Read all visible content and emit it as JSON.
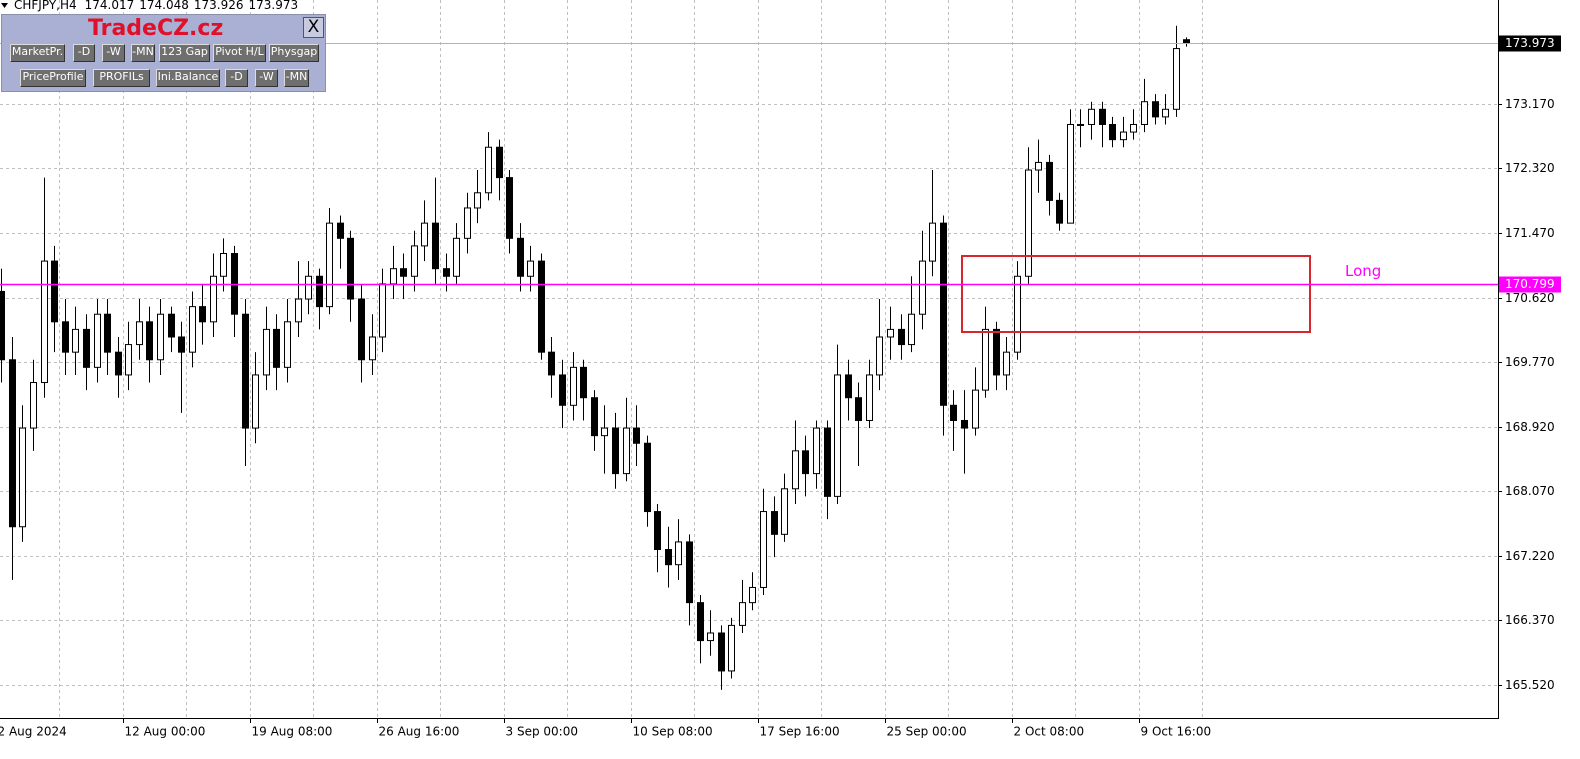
{
  "header": {
    "symbol": "CHFJPY,H4"
  },
  "panel": {
    "title": "TradeCZ.cz",
    "close": "X",
    "row1": [
      "MarketPr.",
      "-D",
      "-W",
      "-MN",
      "123 Gap",
      "Pivot H/L",
      "Physgap"
    ],
    "row2": [
      "PriceProfile",
      "PROFILs",
      "Ini.Balance",
      "-D",
      "-W",
      "-MN"
    ]
  },
  "chart_data": {
    "type": "candlestick",
    "open": [
      170.7,
      169.8,
      167.6,
      168.9,
      169.5,
      171.1,
      170.3,
      169.9,
      170.2,
      169.7,
      170.4,
      169.9,
      169.6,
      170.0,
      170.3,
      169.8,
      170.4,
      170.1,
      169.9,
      170.5,
      170.3,
      170.9,
      171.2,
      170.4,
      168.9,
      169.6,
      170.2,
      169.7,
      170.3,
      170.6,
      170.9,
      170.5,
      171.6,
      171.4,
      170.6,
      169.8,
      170.1,
      170.8,
      171.0,
      170.9,
      171.3,
      171.6,
      171.0,
      170.9,
      171.4,
      171.8,
      172.0,
      172.6,
      172.2,
      171.4,
      170.9,
      171.1,
      169.9,
      169.6,
      169.2,
      169.7,
      169.3,
      168.8,
      168.9,
      168.3,
      168.9,
      168.7,
      167.8,
      167.3,
      167.1,
      167.4,
      166.6,
      166.1,
      166.2,
      165.7,
      166.3,
      166.6,
      166.8,
      167.8,
      167.5,
      168.1,
      168.6,
      168.3,
      168.9,
      168.0,
      169.6,
      169.3,
      169.0,
      169.6,
      170.1,
      170.2,
      170.0,
      170.4,
      171.1,
      171.6,
      169.2,
      169.0,
      168.9,
      169.4,
      170.2,
      169.6,
      169.9,
      170.9,
      172.3,
      172.4,
      171.9,
      171.6,
      172.9,
      172.9,
      173.1,
      172.9,
      172.7,
      172.8,
      172.9,
      173.2,
      173.0,
      173.1,
      174.017
    ],
    "high": [
      171.0,
      170.1,
      169.2,
      169.8,
      172.2,
      171.3,
      170.6,
      170.5,
      170.4,
      170.6,
      170.6,
      170.1,
      170.3,
      170.6,
      170.5,
      170.6,
      170.5,
      170.3,
      170.7,
      170.8,
      171.2,
      171.4,
      171.3,
      170.6,
      169.9,
      170.5,
      170.4,
      170.6,
      171.1,
      171.1,
      171.0,
      171.8,
      171.7,
      171.5,
      170.8,
      170.4,
      171.0,
      171.3,
      171.2,
      171.5,
      171.9,
      172.2,
      171.2,
      171.6,
      172.0,
      172.3,
      172.8,
      172.7,
      172.3,
      171.6,
      171.3,
      171.2,
      170.1,
      169.8,
      169.9,
      169.8,
      169.4,
      169.2,
      169.1,
      169.3,
      169.2,
      168.8,
      167.9,
      167.6,
      167.7,
      167.5,
      166.7,
      166.5,
      166.3,
      166.4,
      166.9,
      167.0,
      168.1,
      168.0,
      168.3,
      169.0,
      168.8,
      169.0,
      169.0,
      170.0,
      169.8,
      169.5,
      169.8,
      170.6,
      170.5,
      170.4,
      170.9,
      171.5,
      172.3,
      171.7,
      169.4,
      169.4,
      169.7,
      170.5,
      170.3,
      170.1,
      171.1,
      172.6,
      172.7,
      172.5,
      172.0,
      173.1,
      173.1,
      173.2,
      173.2,
      173.0,
      173.0,
      173.1,
      173.5,
      173.3,
      173.3,
      174.2,
      174.048
    ],
    "low": [
      169.5,
      166.9,
      167.4,
      168.6,
      169.3,
      169.9,
      169.6,
      169.6,
      169.4,
      169.5,
      169.6,
      169.3,
      169.4,
      169.8,
      169.5,
      169.6,
      169.9,
      169.1,
      169.7,
      170.0,
      170.1,
      170.7,
      170.1,
      168.4,
      168.7,
      169.4,
      169.4,
      169.5,
      170.1,
      170.4,
      170.2,
      170.4,
      171.0,
      170.3,
      169.5,
      169.6,
      169.9,
      170.6,
      170.6,
      170.7,
      171.1,
      170.8,
      170.7,
      170.8,
      171.2,
      171.6,
      171.9,
      171.9,
      171.2,
      170.7,
      170.7,
      169.8,
      169.3,
      168.9,
      169.0,
      169.0,
      168.6,
      168.3,
      168.1,
      168.2,
      168.4,
      167.6,
      167.0,
      166.8,
      166.9,
      166.3,
      165.8,
      165.9,
      165.45,
      165.6,
      166.2,
      166.5,
      166.7,
      167.2,
      167.4,
      167.9,
      168.0,
      168.1,
      167.7,
      167.9,
      169.0,
      168.4,
      168.9,
      169.4,
      169.8,
      169.8,
      169.9,
      170.2,
      170.9,
      168.8,
      168.6,
      168.3,
      168.8,
      169.3,
      169.4,
      169.4,
      169.8,
      170.8,
      172.0,
      171.7,
      171.5,
      171.6,
      172.6,
      172.7,
      172.6,
      172.6,
      172.6,
      172.7,
      172.8,
      172.9,
      172.9,
      173.0,
      173.926
    ],
    "close": [
      169.8,
      167.6,
      168.9,
      169.5,
      171.1,
      170.3,
      169.9,
      170.2,
      169.7,
      170.4,
      169.9,
      169.6,
      170.0,
      170.3,
      169.8,
      170.4,
      170.1,
      169.9,
      170.5,
      170.3,
      170.9,
      171.2,
      170.4,
      168.9,
      169.6,
      170.2,
      169.7,
      170.3,
      170.6,
      170.9,
      170.5,
      171.6,
      171.4,
      170.6,
      169.8,
      170.1,
      170.8,
      171.0,
      170.9,
      171.3,
      171.6,
      171.0,
      170.9,
      171.4,
      171.8,
      172.0,
      172.6,
      172.2,
      171.4,
      170.9,
      171.1,
      169.9,
      169.6,
      169.2,
      169.7,
      169.3,
      168.8,
      168.9,
      168.3,
      168.9,
      168.7,
      167.8,
      167.3,
      167.1,
      167.4,
      166.6,
      166.1,
      166.2,
      165.7,
      166.3,
      166.6,
      166.8,
      167.8,
      167.5,
      168.1,
      168.6,
      168.3,
      168.9,
      168.0,
      169.6,
      169.3,
      169.0,
      169.6,
      170.1,
      170.2,
      170.0,
      170.4,
      171.1,
      171.6,
      169.2,
      169.0,
      168.9,
      169.4,
      170.2,
      169.6,
      169.9,
      170.9,
      172.3,
      172.4,
      171.9,
      171.6,
      172.9,
      172.9,
      173.1,
      172.9,
      172.7,
      172.8,
      172.9,
      173.2,
      173.0,
      173.1,
      173.9,
      173.973
    ],
    "ylim": [
      165.08,
      174.54
    ],
    "yticks": [
      {
        "value": 165.52,
        "label": "165.520"
      },
      {
        "value": 166.37,
        "label": "166.370"
      },
      {
        "value": 167.22,
        "label": "167.220"
      },
      {
        "value": 168.07,
        "label": "168.070"
      },
      {
        "value": 168.92,
        "label": "168.920"
      },
      {
        "value": 169.77,
        "label": "169.770"
      },
      {
        "value": 170.62,
        "label": "170.620"
      },
      {
        "value": 171.47,
        "label": "171.470"
      },
      {
        "value": 172.32,
        "label": "172.320"
      },
      {
        "value": 173.17,
        "label": "173.170"
      }
    ],
    "xticks": [
      {
        "value": 0,
        "label": "2 Aug 2024"
      },
      {
        "value": 12,
        "label": "12 Aug 00:00"
      },
      {
        "value": 24,
        "label": "19 Aug 08:00"
      },
      {
        "value": 36,
        "label": "26 Aug 16:00"
      },
      {
        "value": 48,
        "label": "3 Sep 00:00"
      },
      {
        "value": 60,
        "label": "10 Sep 08:00"
      },
      {
        "value": 72,
        "label": "17 Sep 16:00"
      },
      {
        "value": 84,
        "label": "25 Sep 00:00"
      },
      {
        "value": 96,
        "label": "2 Oct 08:00"
      },
      {
        "value": 108,
        "label": "9 Oct 16:00"
      }
    ],
    "levels": [
      {
        "value": 170.799,
        "label": "Long",
        "color": "#ff00ff"
      }
    ],
    "grid": true,
    "bull_color": "#ffffff",
    "bear_color": "#000000"
  }
}
